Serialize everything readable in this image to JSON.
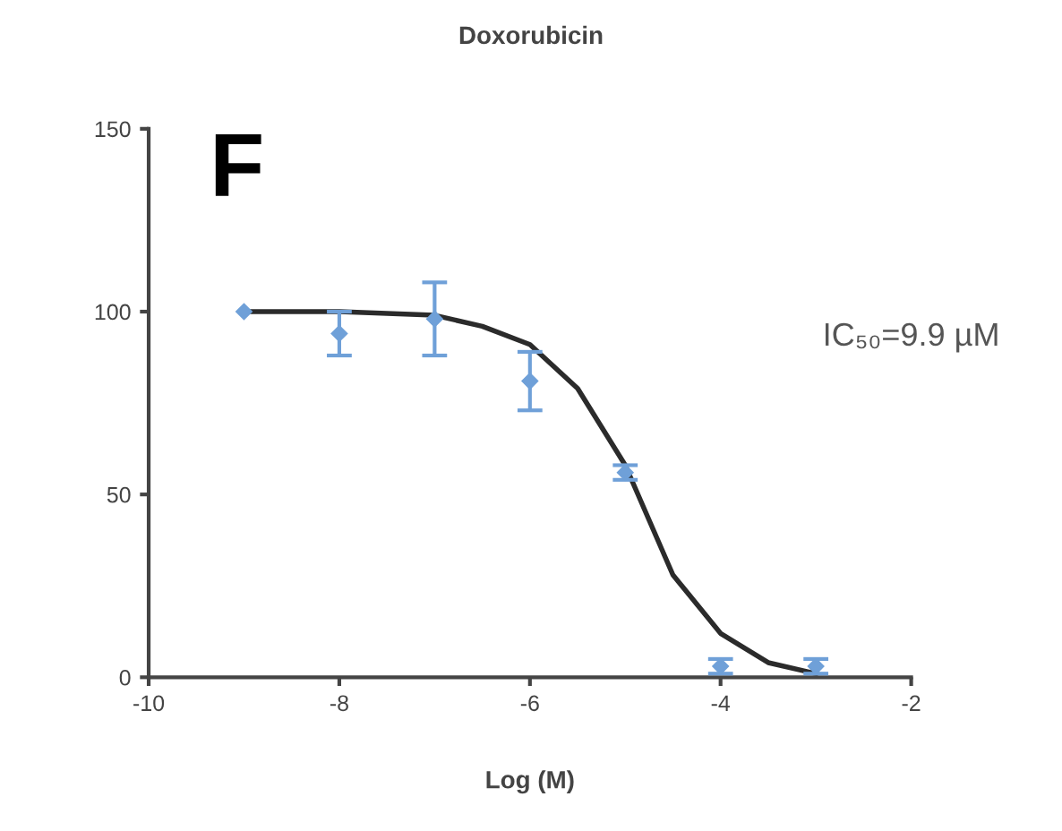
{
  "chart_data": {
    "type": "scatter",
    "title": "Doxorubicin",
    "xlabel": "Log (M)",
    "annotations": [
      "F",
      "IC₅₀=9.9 µM"
    ],
    "xlim": [
      -10,
      -2
    ],
    "ylim": [
      0,
      150
    ],
    "xticks": [
      -10,
      -8,
      -6,
      -4,
      -2
    ],
    "yticks": [
      0,
      50,
      100,
      150
    ],
    "grid": false,
    "marker": "diamond",
    "series": [
      {
        "color": "#6fa0d8",
        "x": [
          -9,
          -8,
          -7,
          -6,
          -5,
          -4,
          -3
        ],
        "values": [
          100,
          94,
          98,
          81,
          56,
          3,
          3
        ],
        "errors": [
          null,
          6,
          10,
          8,
          2,
          2,
          2
        ]
      },
      {
        "type": "line",
        "color": "#2b2b2b",
        "marker": "none",
        "line_style": "solid",
        "x": [
          -9,
          -8,
          -7,
          -6.5,
          -6,
          -5.5,
          -5,
          -4.5,
          -4,
          -3.5,
          -3
        ],
        "values": [
          100,
          100,
          99,
          96,
          91,
          79,
          58,
          28,
          12,
          4,
          1
        ]
      }
    ]
  }
}
